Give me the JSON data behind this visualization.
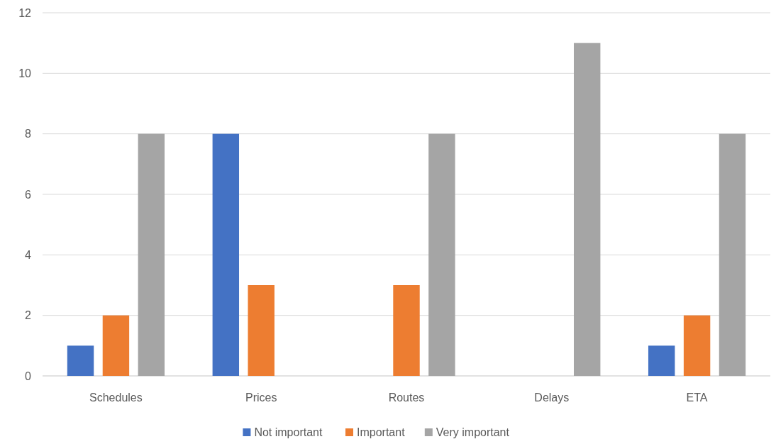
{
  "chart_data": {
    "type": "bar",
    "categories": [
      "Schedules",
      "Prices",
      "Routes",
      "Delays",
      "ETA"
    ],
    "series": [
      {
        "name": "Not important",
        "color": "#4472c4",
        "values": [
          1,
          8,
          0,
          0,
          1
        ]
      },
      {
        "name": "Important",
        "color": "#ed7d31",
        "values": [
          2,
          3,
          3,
          0,
          2
        ]
      },
      {
        "name": "Very important",
        "color": "#a5a5a5",
        "values": [
          8,
          0,
          8,
          11,
          8
        ]
      }
    ],
    "ylim": [
      0,
      12
    ],
    "yticks": [
      0,
      2,
      4,
      6,
      8,
      10,
      12
    ],
    "grid": "y",
    "legend": "bottom"
  }
}
